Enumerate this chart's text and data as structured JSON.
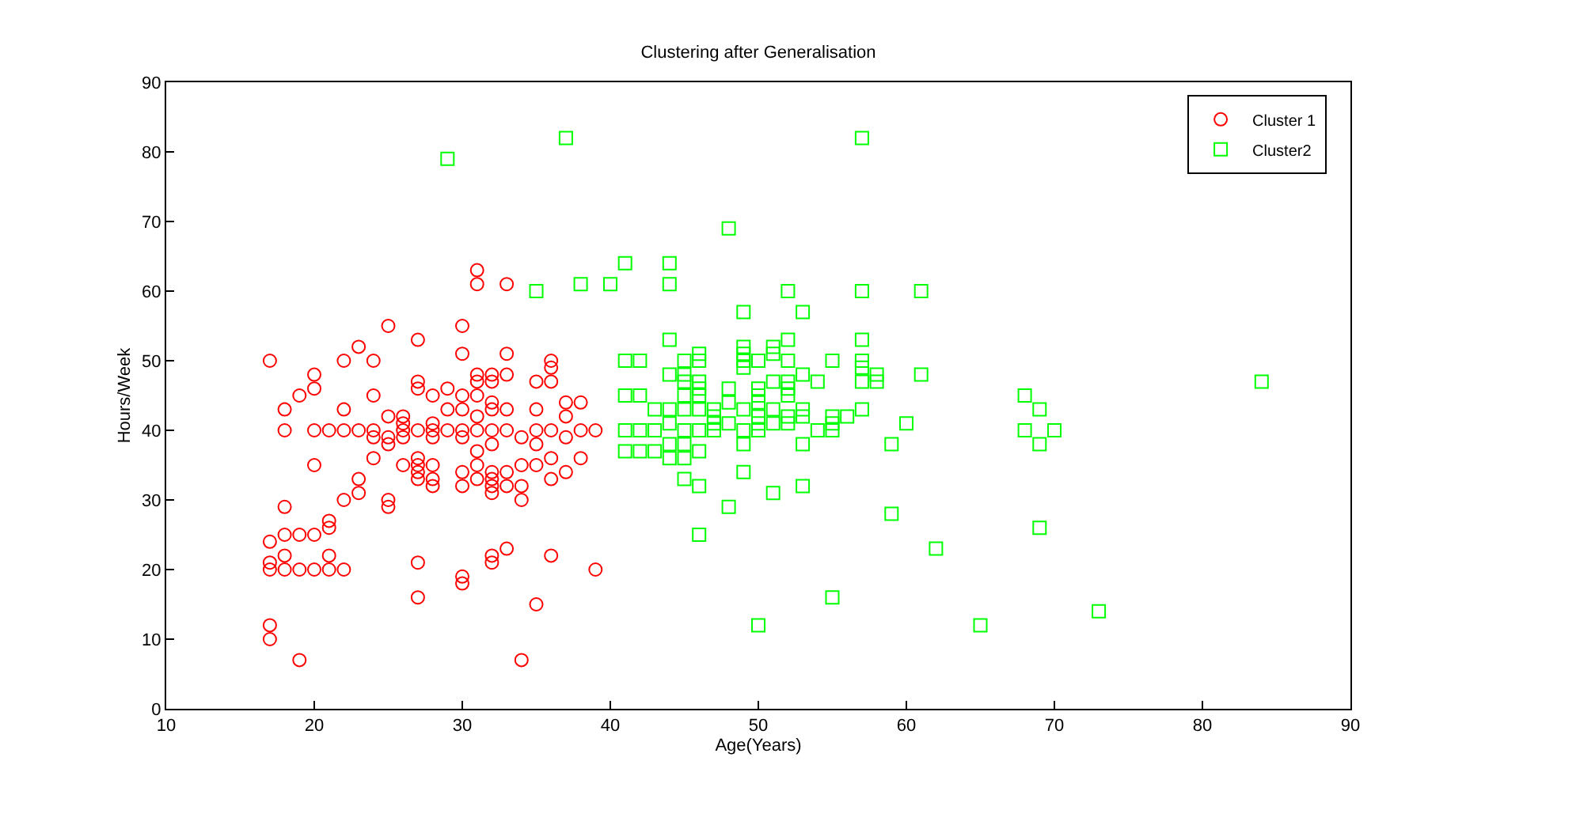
{
  "chart_data": {
    "type": "scatter",
    "title": "Clustering after Generalisation",
    "xlabel": "Age(Years)",
    "ylabel": "Hours/Week",
    "xlim": [
      10,
      90
    ],
    "xticks": [
      10,
      20,
      30,
      40,
      50,
      60,
      70,
      80,
      90
    ],
    "ylim": [
      0,
      90
    ],
    "yticks": [
      0,
      10,
      20,
      30,
      40,
      50,
      60,
      70,
      80,
      90
    ],
    "legend": "top right",
    "series": [
      {
        "name": "Cluster 1",
        "color": "#ff0000",
        "marker": "circle",
        "x": [
          17,
          17,
          17,
          17,
          17,
          17,
          18,
          18,
          18,
          18,
          18,
          18,
          19,
          19,
          19,
          19,
          20,
          20,
          20,
          20,
          20,
          20,
          21,
          21,
          21,
          21,
          21,
          22,
          22,
          22,
          22,
          22,
          23,
          23,
          23,
          23,
          24,
          24,
          24,
          24,
          24,
          25,
          25,
          25,
          25,
          25,
          25,
          26,
          26,
          26,
          26,
          26,
          27,
          27,
          27,
          27,
          27,
          27,
          27,
          27,
          27,
          27,
          28,
          28,
          28,
          28,
          28,
          28,
          28,
          29,
          29,
          29,
          30,
          30,
          30,
          30,
          30,
          30,
          30,
          30,
          30,
          30,
          31,
          31,
          31,
          31,
          31,
          31,
          31,
          31,
          31,
          31,
          32,
          32,
          32,
          32,
          32,
          32,
          32,
          32,
          32,
          32,
          32,
          32,
          33,
          33,
          33,
          33,
          33,
          33,
          33,
          33,
          34,
          34,
          34,
          34,
          34,
          35,
          35,
          35,
          35,
          35,
          35,
          36,
          36,
          36,
          36,
          36,
          36,
          36,
          37,
          37,
          37,
          37,
          38,
          38,
          38,
          39,
          39
        ],
        "values": [
          50,
          24,
          21,
          20,
          12,
          10,
          43,
          40,
          29,
          25,
          22,
          20,
          45,
          25,
          20,
          7,
          48,
          46,
          40,
          35,
          25,
          20,
          40,
          27,
          26,
          22,
          20,
          50,
          43,
          40,
          30,
          20,
          52,
          40,
          33,
          31,
          50,
          45,
          40,
          39,
          36,
          55,
          42,
          39,
          38,
          30,
          29,
          42,
          41,
          40,
          39,
          35,
          53,
          47,
          46,
          40,
          36,
          35,
          34,
          33,
          21,
          16,
          45,
          41,
          40,
          39,
          35,
          33,
          32,
          46,
          43,
          40,
          55,
          51,
          45,
          43,
          40,
          39,
          34,
          32,
          19,
          18,
          63,
          61,
          48,
          47,
          45,
          42,
          40,
          37,
          35,
          33,
          48,
          47,
          44,
          43,
          40,
          38,
          34,
          33,
          32,
          31,
          22,
          21,
          61,
          51,
          48,
          43,
          40,
          34,
          32,
          23,
          39,
          35,
          32,
          30,
          7,
          47,
          43,
          40,
          38,
          35,
          15,
          50,
          49,
          47,
          40,
          36,
          33,
          22,
          44,
          42,
          39,
          34,
          44,
          40,
          36,
          40,
          20
        ]
      },
      {
        "name": "Cluster2",
        "color": "#00ff00",
        "marker": "square",
        "x": [
          29,
          35,
          37,
          38,
          40,
          41,
          41,
          41,
          41,
          41,
          42,
          42,
          42,
          42,
          43,
          43,
          43,
          44,
          44,
          44,
          44,
          44,
          44,
          44,
          44,
          45,
          45,
          45,
          45,
          45,
          45,
          45,
          45,
          45,
          46,
          46,
          46,
          46,
          46,
          46,
          46,
          46,
          46,
          46,
          47,
          47,
          47,
          47,
          48,
          48,
          48,
          48,
          48,
          49,
          49,
          49,
          49,
          49,
          49,
          49,
          49,
          49,
          50,
          50,
          50,
          50,
          50,
          50,
          50,
          50,
          51,
          51,
          51,
          51,
          51,
          51,
          52,
          52,
          52,
          52,
          52,
          52,
          52,
          52,
          53,
          53,
          53,
          53,
          53,
          53,
          54,
          54,
          55,
          55,
          55,
          55,
          55,
          56,
          57,
          57,
          57,
          57,
          57,
          57,
          57,
          58,
          58,
          59,
          59,
          60,
          61,
          61,
          62,
          65,
          68,
          68,
          69,
          69,
          69,
          70,
          73,
          84
        ],
        "values": [
          79,
          60,
          82,
          61,
          61,
          64,
          50,
          45,
          40,
          37,
          50,
          45,
          40,
          37,
          43,
          40,
          37,
          64,
          61,
          53,
          48,
          43,
          41,
          38,
          36,
          50,
          48,
          47,
          45,
          43,
          40,
          38,
          36,
          33,
          51,
          50,
          47,
          46,
          45,
          43,
          40,
          37,
          32,
          25,
          43,
          42,
          41,
          40,
          69,
          46,
          44,
          41,
          29,
          57,
          52,
          51,
          50,
          49,
          43,
          40,
          38,
          34,
          50,
          46,
          45,
          44,
          42,
          41,
          40,
          12,
          52,
          51,
          47,
          43,
          41,
          31,
          60,
          53,
          50,
          47,
          46,
          45,
          42,
          41,
          57,
          48,
          43,
          42,
          38,
          32,
          47,
          40,
          50,
          42,
          41,
          40,
          16,
          42,
          82,
          60,
          53,
          50,
          49,
          47,
          43,
          48,
          47,
          38,
          28,
          41,
          60,
          48,
          23,
          12,
          45,
          40,
          43,
          38,
          26,
          40,
          14,
          47
        ]
      }
    ]
  }
}
